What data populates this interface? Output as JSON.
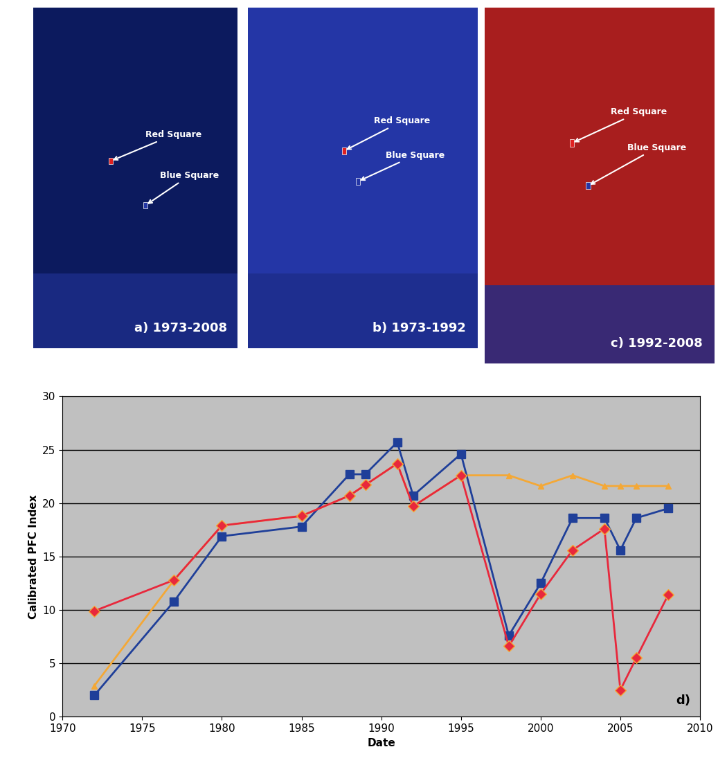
{
  "panels": [
    {
      "label": "a) 1973-2008",
      "annotations": [
        "Red Square",
        "Blue Square"
      ]
    },
    {
      "label": "b) 1973-1992",
      "annotations": [
        "Red Square",
        "Blue Square"
      ]
    },
    {
      "label": "c) 1992-2008",
      "annotations": [
        "Red Square",
        "Blue Square"
      ]
    }
  ],
  "chart_data": {
    "type": "line",
    "panel_label": "d)",
    "x_label": "Date",
    "y_label": "Calibrated PFC Index",
    "x": [
      1972,
      1977,
      1980,
      1985,
      1988,
      1989,
      1991,
      1992,
      1995,
      1998,
      2000,
      2002,
      2004,
      2005,
      2006,
      2008
    ],
    "series": [
      {
        "color": "#f4a836",
        "marker": "triangle",
        "values": [
          2.9,
          12.8,
          17.9,
          18.8,
          20.7,
          21.7,
          23.7,
          19.7,
          22.6,
          22.6,
          21.6,
          22.6,
          21.6,
          21.6,
          21.6,
          21.6
        ]
      },
      {
        "color": "#1f3f99",
        "marker": "square",
        "values": [
          2.0,
          10.8,
          16.9,
          17.8,
          22.7,
          22.7,
          25.7,
          20.7,
          24.6,
          7.6,
          12.5,
          18.6,
          18.6,
          15.6,
          18.6,
          19.5
        ]
      },
      {
        "color": "#e8283c",
        "marker": "diamond",
        "values": [
          9.9,
          12.8,
          17.9,
          18.8,
          20.7,
          21.7,
          23.7,
          19.7,
          22.6,
          6.6,
          11.5,
          15.6,
          17.6,
          2.5,
          5.5,
          11.4
        ]
      }
    ],
    "xlim": [
      1970,
      2010
    ],
    "xticks": [
      1970,
      1975,
      1980,
      1985,
      1990,
      1995,
      2000,
      2005,
      2010
    ],
    "ylim": [
      0,
      30
    ],
    "yticks": [
      0,
      5,
      10,
      15,
      20,
      25,
      30
    ],
    "grid": true
  }
}
